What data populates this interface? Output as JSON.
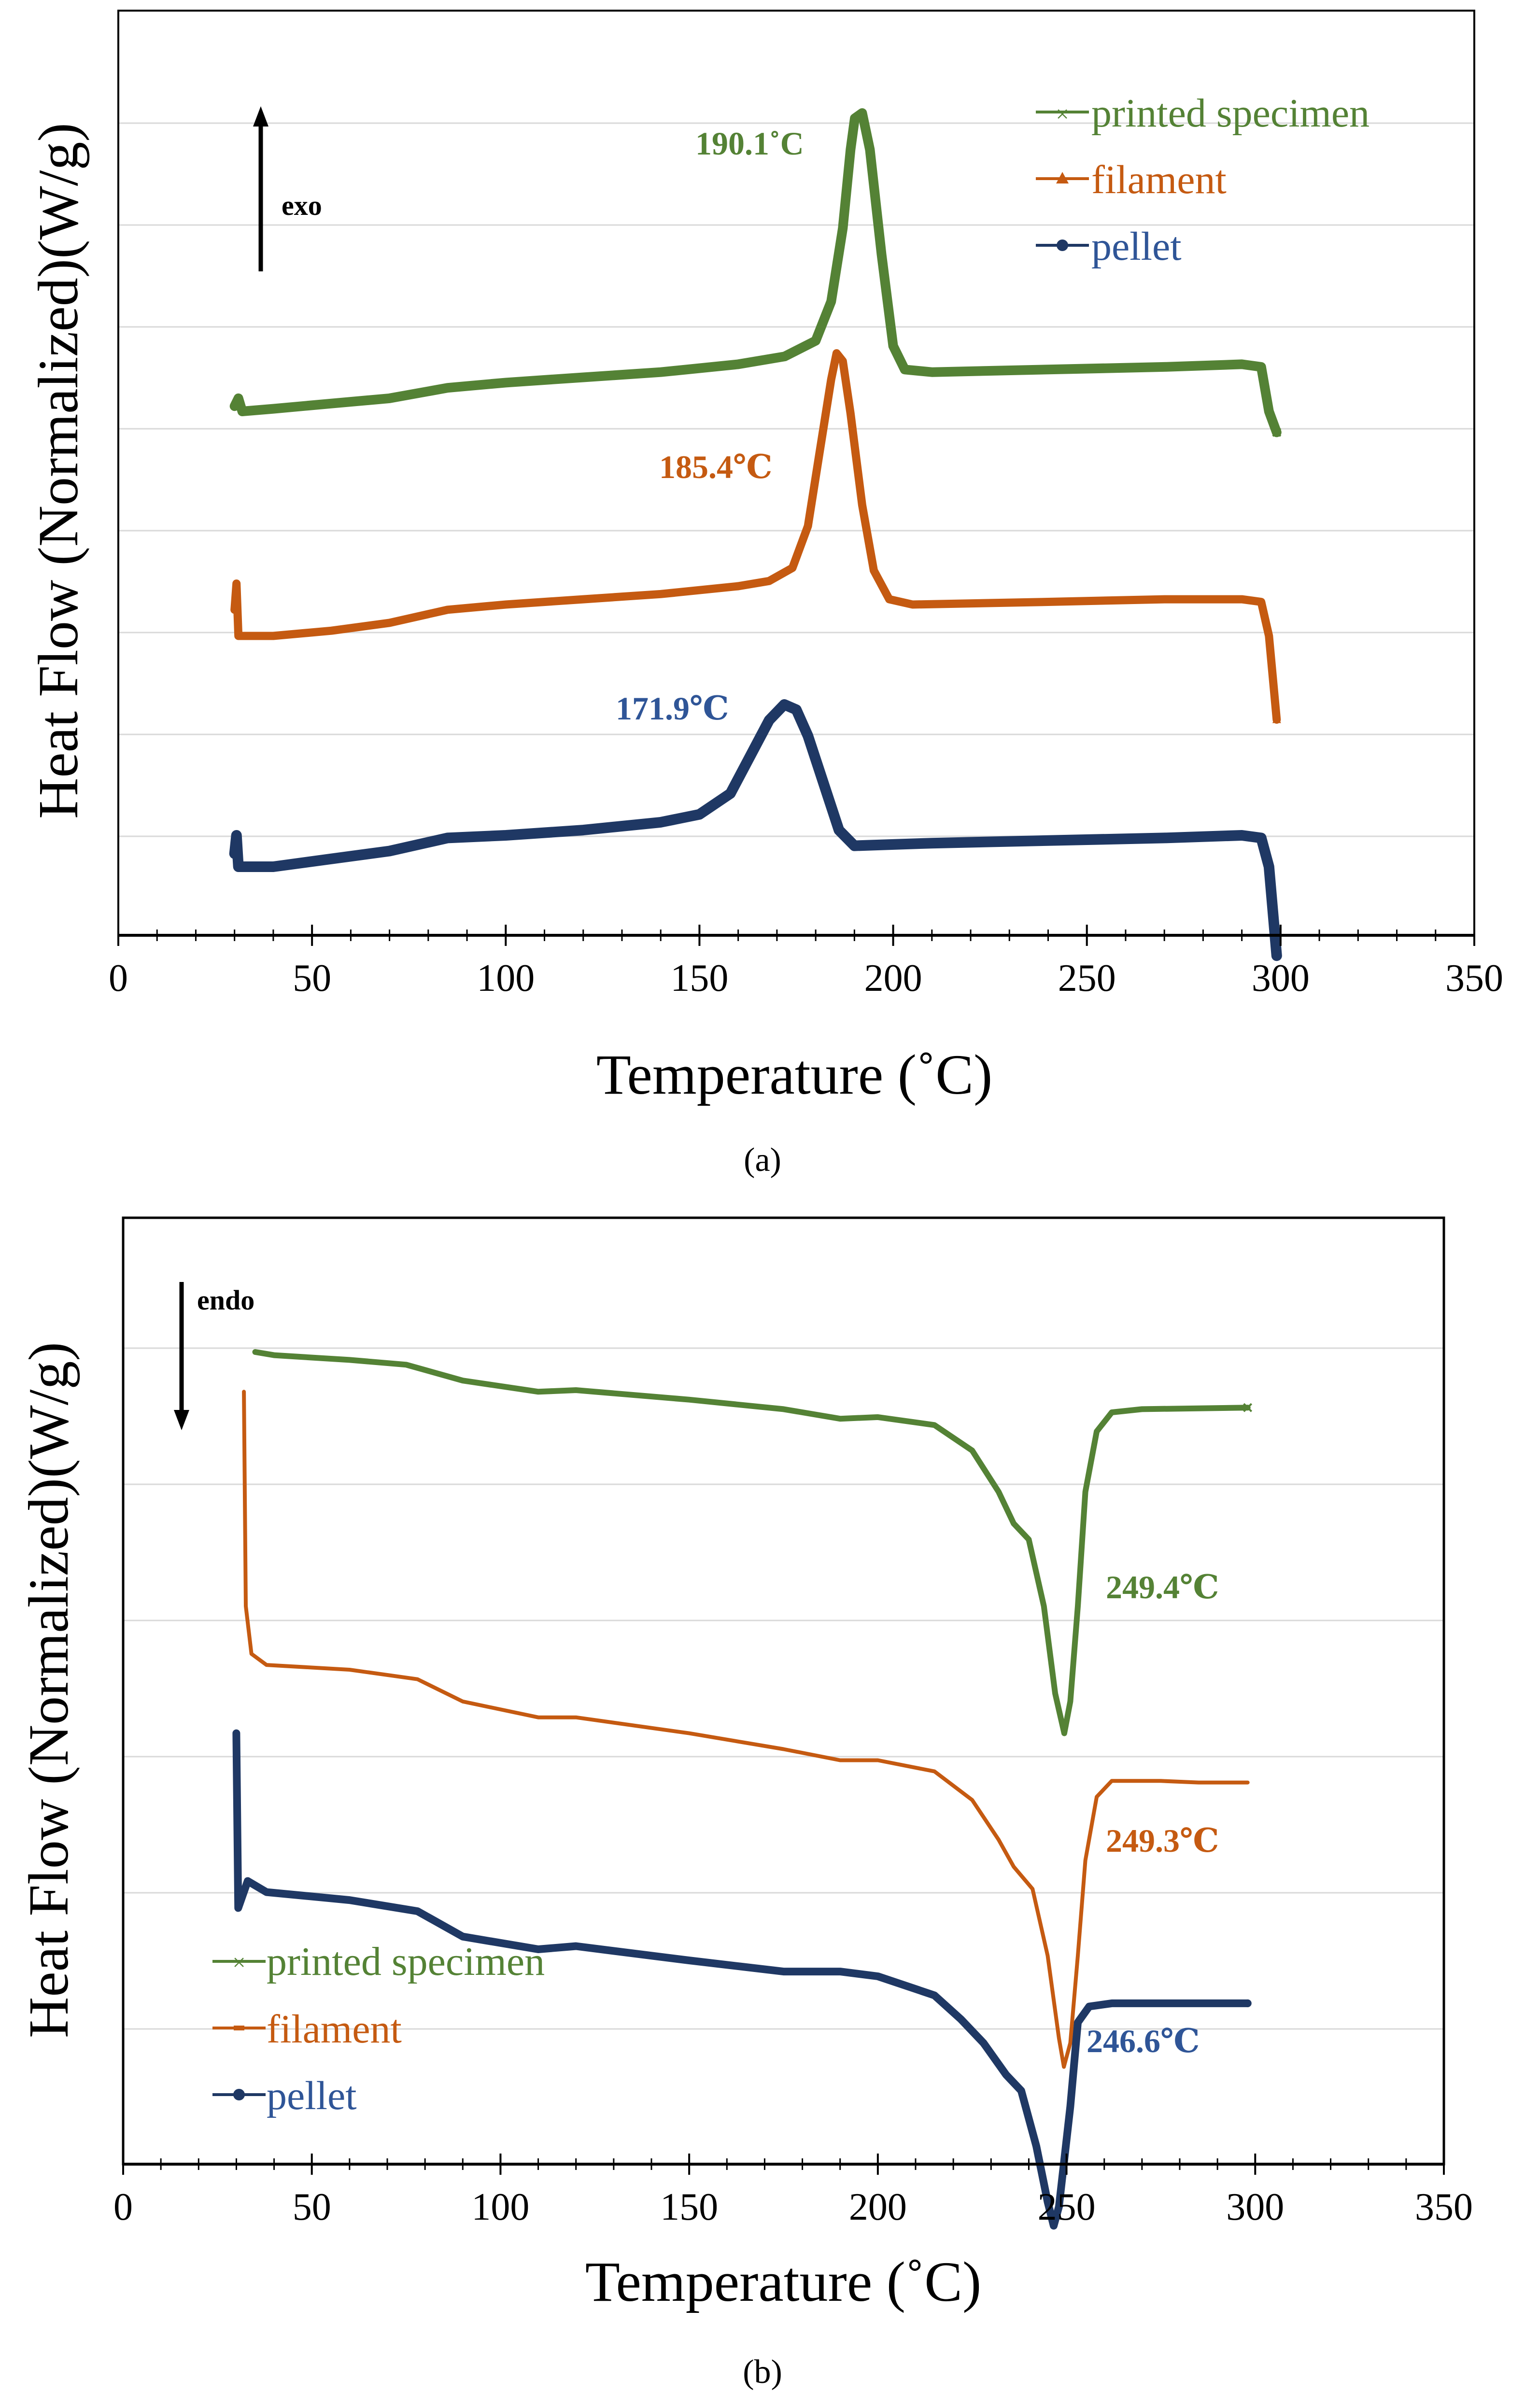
{
  "chart_data": [
    {
      "type": "line",
      "panel_label": "(a)",
      "xlabel": "Temperature (˚C)",
      "ylabel": "Heat Flow (Normalized)(W/g)",
      "xlim": [
        0,
        350
      ],
      "x_ticks": [
        "0",
        "50",
        "100",
        "150",
        "200",
        "250",
        "300",
        "350"
      ],
      "y_grid_lines": 8,
      "grid": true,
      "legend_position": "top-right",
      "direction_arrow": {
        "label": "exo",
        "direction": "up"
      },
      "series": [
        {
          "name": "printed specimen",
          "color": "#548235",
          "marker": "x",
          "points": [
            [
              30,
              0.02
            ],
            [
              31,
              0.05
            ],
            [
              32,
              0.0
            ],
            [
              40,
              0.01
            ],
            [
              55,
              0.03
            ],
            [
              70,
              0.05
            ],
            [
              85,
              0.09
            ],
            [
              100,
              0.11
            ],
            [
              120,
              0.13
            ],
            [
              140,
              0.15
            ],
            [
              160,
              0.18
            ],
            [
              172,
              0.21
            ],
            [
              180,
              0.27
            ],
            [
              184,
              0.42
            ],
            [
              187,
              0.7
            ],
            [
              189,
              1.0
            ],
            [
              190.1,
              1.12
            ],
            [
              192,
              1.14
            ],
            [
              194,
              1.0
            ],
            [
              197,
              0.6
            ],
            [
              200,
              0.25
            ],
            [
              203,
              0.16
            ],
            [
              210,
              0.15
            ],
            [
              240,
              0.16
            ],
            [
              270,
              0.17
            ],
            [
              290,
              0.18
            ],
            [
              295,
              0.17
            ],
            [
              297,
              0.0
            ],
            [
              299,
              -0.08
            ]
          ]
        },
        {
          "name": "filament",
          "color": "#C55A11",
          "marker": "triangle",
          "points": [
            [
              30,
              0.1
            ],
            [
              30.5,
              0.2
            ],
            [
              31,
              0.0
            ],
            [
              40,
              0.0
            ],
            [
              55,
              0.02
            ],
            [
              70,
              0.05
            ],
            [
              85,
              0.1
            ],
            [
              100,
              0.12
            ],
            [
              120,
              0.14
            ],
            [
              140,
              0.16
            ],
            [
              160,
              0.19
            ],
            [
              168,
              0.21
            ],
            [
              174,
              0.26
            ],
            [
              178,
              0.42
            ],
            [
              181,
              0.7
            ],
            [
              184,
              0.98
            ],
            [
              185.4,
              1.08
            ],
            [
              187,
              1.05
            ],
            [
              189,
              0.85
            ],
            [
              192,
              0.5
            ],
            [
              195,
              0.25
            ],
            [
              199,
              0.14
            ],
            [
              205,
              0.12
            ],
            [
              240,
              0.13
            ],
            [
              270,
              0.14
            ],
            [
              290,
              0.14
            ],
            [
              295,
              0.13
            ],
            [
              297,
              0.0
            ],
            [
              299,
              -0.32
            ]
          ]
        },
        {
          "name": "pellet",
          "color": "#1F3864",
          "marker": "circle",
          "points": [
            [
              30,
              0.05
            ],
            [
              30.5,
              0.12
            ],
            [
              31,
              0.0
            ],
            [
              40,
              0.0
            ],
            [
              55,
              0.03
            ],
            [
              70,
              0.06
            ],
            [
              85,
              0.11
            ],
            [
              100,
              0.12
            ],
            [
              120,
              0.14
            ],
            [
              140,
              0.17
            ],
            [
              150,
              0.2
            ],
            [
              158,
              0.28
            ],
            [
              163,
              0.42
            ],
            [
              168,
              0.56
            ],
            [
              171.9,
              0.62
            ],
            [
              175,
              0.6
            ],
            [
              178,
              0.5
            ],
            [
              182,
              0.32
            ],
            [
              186,
              0.14
            ],
            [
              190,
              0.08
            ],
            [
              210,
              0.09
            ],
            [
              240,
              0.1
            ],
            [
              270,
              0.11
            ],
            [
              290,
              0.12
            ],
            [
              295,
              0.11
            ],
            [
              297,
              0.0
            ],
            [
              299,
              -0.34
            ]
          ]
        }
      ],
      "annotations": [
        {
          "text": "190.1˚C",
          "series": "printed specimen"
        },
        {
          "text": "185.4℃",
          "series": "filament"
        },
        {
          "text": "171.9℃",
          "series": "pellet"
        }
      ]
    },
    {
      "type": "line",
      "panel_label": "(b)",
      "xlabel": "Temperature (˚C)",
      "ylabel": "Heat Flow (Normalized)(W/g)",
      "xlim": [
        0,
        350
      ],
      "x_ticks": [
        "0",
        "50",
        "100",
        "150",
        "200",
        "250",
        "300",
        "350"
      ],
      "y_grid_lines": 6,
      "grid": true,
      "legend_position": "bottom-left",
      "direction_arrow": {
        "label": "endo",
        "direction": "down"
      },
      "series": [
        {
          "name": "printed specimen",
          "color": "#548235",
          "marker": "x",
          "points": [
            [
              35,
              0.0
            ],
            [
              40,
              -0.02
            ],
            [
              60,
              -0.05
            ],
            [
              75,
              -0.08
            ],
            [
              90,
              -0.18
            ],
            [
              110,
              -0.25
            ],
            [
              120,
              -0.24
            ],
            [
              150,
              -0.3
            ],
            [
              175,
              -0.36
            ],
            [
              190,
              -0.42
            ],
            [
              200,
              -0.41
            ],
            [
              215,
              -0.46
            ],
            [
              225,
              -0.62
            ],
            [
              232,
              -0.88
            ],
            [
              236,
              -1.08
            ],
            [
              240,
              -1.18
            ],
            [
              244,
              -1.6
            ],
            [
              247,
              -2.15
            ],
            [
              249.4,
              -2.4
            ],
            [
              251,
              -2.2
            ],
            [
              253,
              -1.6
            ],
            [
              255,
              -0.88
            ],
            [
              258,
              -0.5
            ],
            [
              262,
              -0.38
            ],
            [
              270,
              -0.36
            ],
            [
              298,
              -0.35
            ]
          ]
        },
        {
          "name": "filament",
          "color": "#C55A11",
          "marker": "dash",
          "points": [
            [
              32,
              -0.25
            ],
            [
              32.5,
              -1.6
            ],
            [
              34,
              -1.9
            ],
            [
              38,
              -1.97
            ],
            [
              60,
              -2.0
            ],
            [
              78,
              -2.06
            ],
            [
              90,
              -2.2
            ],
            [
              110,
              -2.3
            ],
            [
              120,
              -2.3
            ],
            [
              150,
              -2.4
            ],
            [
              175,
              -2.5
            ],
            [
              190,
              -2.57
            ],
            [
              200,
              -2.57
            ],
            [
              215,
              -2.64
            ],
            [
              225,
              -2.82
            ],
            [
              232,
              -3.07
            ],
            [
              236,
              -3.24
            ],
            [
              241,
              -3.38
            ],
            [
              245,
              -3.8
            ],
            [
              248,
              -4.32
            ],
            [
              249.3,
              -4.5
            ],
            [
              251,
              -4.35
            ],
            [
              253,
              -3.8
            ],
            [
              255,
              -3.2
            ],
            [
              258,
              -2.8
            ],
            [
              262,
              -2.7
            ],
            [
              275,
              -2.7
            ],
            [
              285,
              -2.71
            ],
            [
              298,
              -2.71
            ]
          ]
        },
        {
          "name": "pellet",
          "color": "#1F3864",
          "marker": "circle",
          "points": [
            [
              30,
              -2.4
            ],
            [
              30.5,
              -3.5
            ],
            [
              33,
              -3.33
            ],
            [
              38,
              -3.4
            ],
            [
              60,
              -3.45
            ],
            [
              78,
              -3.52
            ],
            [
              90,
              -3.68
            ],
            [
              110,
              -3.76
            ],
            [
              120,
              -3.74
            ],
            [
              150,
              -3.83
            ],
            [
              175,
              -3.9
            ],
            [
              190,
              -3.9
            ],
            [
              200,
              -3.93
            ],
            [
              215,
              -4.05
            ],
            [
              222,
              -4.2
            ],
            [
              228,
              -4.35
            ],
            [
              234,
              -4.55
            ],
            [
              238,
              -4.65
            ],
            [
              242,
              -5.0
            ],
            [
              245,
              -5.35
            ],
            [
              246.6,
              -5.5
            ],
            [
              248,
              -5.38
            ],
            [
              251,
              -4.75
            ],
            [
              253,
              -4.22
            ],
            [
              256,
              -4.12
            ],
            [
              262,
              -4.1
            ],
            [
              298,
              -4.1
            ]
          ]
        }
      ],
      "annotations": [
        {
          "text": "249.4℃",
          "series": "printed specimen"
        },
        {
          "text": "249.3℃",
          "series": "filament"
        },
        {
          "text": "246.6℃",
          "series": "pellet"
        }
      ]
    }
  ]
}
